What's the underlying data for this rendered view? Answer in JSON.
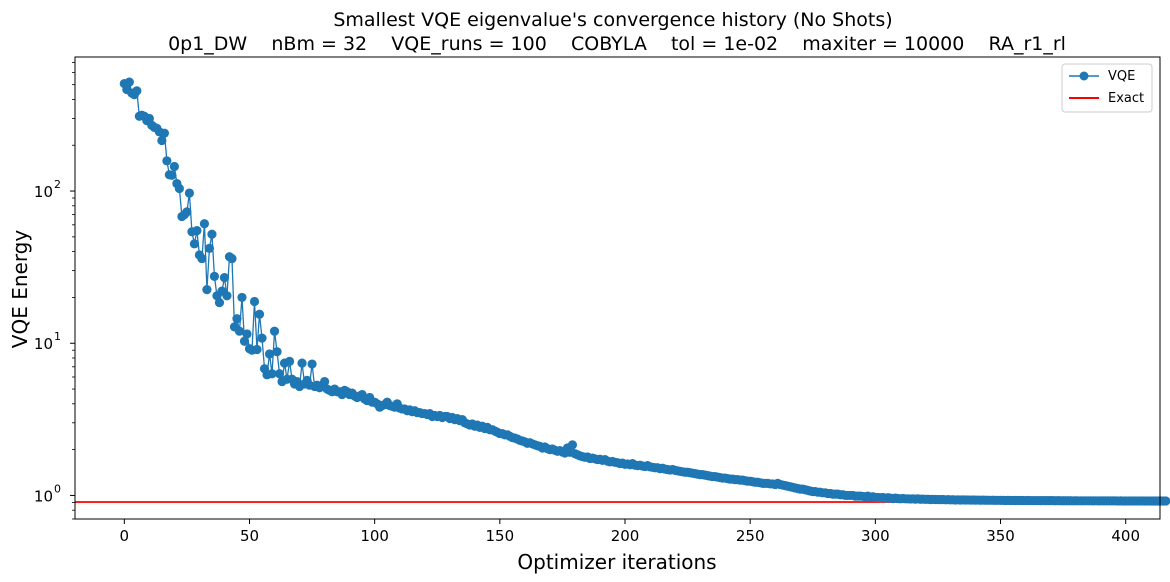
{
  "chart_data": {
    "type": "line",
    "title": "Smallest VQE eigenvalue's convergence history (No Shots)",
    "subtitle": "0p1_DW    nBm = 32    VQE_runs = 100    COBYLA    tol = 1e-02    maxiter = 10000    RA_r1_rl",
    "xlabel": "Optimizer iterations",
    "ylabel": "VQE Energy",
    "xlim": [
      -19.7,
      413.7
    ],
    "ylim": [
      0.7,
      760
    ],
    "yscale": "log",
    "grid": false,
    "x_ticks": [
      0,
      50,
      100,
      150,
      200,
      250,
      300,
      350,
      400
    ],
    "y_ticks": [
      {
        "value": 1,
        "base": "10",
        "exp": "0"
      },
      {
        "value": 10,
        "base": "10",
        "exp": "1"
      },
      {
        "value": 100,
        "base": "10",
        "exp": "2"
      }
    ],
    "legend": {
      "position": "upper right",
      "entries": [
        {
          "label": "VQE",
          "color": "#1f77b4",
          "marker": "circle"
        },
        {
          "label": "Exact",
          "color": "#ff0000",
          "marker": "none"
        }
      ]
    },
    "series": [
      {
        "name": "VQE",
        "color": "#1f77b4",
        "marker": "o",
        "x_start": 0,
        "values": [
          508,
          465,
          520,
          440,
          430,
          455,
          310,
          315,
          310,
          290,
          300,
          270,
          262,
          258,
          245,
          215,
          240,
          158,
          128,
          127,
          145,
          112,
          104,
          68,
          70,
          73,
          97,
          54,
          45,
          55,
          38,
          36,
          61,
          22.5,
          42,
          52,
          27.5,
          20.5,
          18.5,
          22,
          27,
          20.5,
          37,
          36,
          12.8,
          14.5,
          12,
          20,
          10.3,
          11.5,
          9.2,
          9,
          18.8,
          9.1,
          15.5,
          10.8,
          6.8,
          6.2,
          8.5,
          6.3,
          12,
          8.8,
          6.3,
          5.6,
          7.4,
          5.8,
          7.6,
          5.8,
          5.4,
          5.6,
          5.2,
          7.4,
          5.4,
          5.7,
          5.3,
          7.3,
          5.2,
          5.3,
          5.1,
          5.3,
          5.6,
          5,
          4.9,
          4.8,
          5,
          4.8,
          4.8,
          4.6,
          4.9,
          4.8,
          4.6,
          4.7,
          4.5,
          4.4,
          4.5,
          4.6,
          4.3,
          4.2,
          4.4,
          4.1,
          4.1,
          4,
          3.8,
          3.9,
          3.95,
          4.1,
          3.9,
          3.85,
          3.8,
          4,
          3.75,
          3.7,
          3.7,
          3.6,
          3.65,
          3.55,
          3.6,
          3.5,
          3.5,
          3.45,
          3.45,
          3.4,
          3.45,
          3.3,
          3.35,
          3.3,
          3.35,
          3.25,
          3.3,
          3.3,
          3.2,
          3.25,
          3.15,
          3.2,
          3.1,
          3.15,
          3,
          2.95,
          2.9,
          2.95,
          2.85,
          2.9,
          2.8,
          2.85,
          2.75,
          2.8,
          2.7,
          2.7,
          2.65,
          2.6,
          2.55,
          2.55,
          2.5,
          2.5,
          2.45,
          2.4,
          2.38,
          2.35,
          2.3,
          2.28,
          2.25,
          2.2,
          2.22,
          2.18,
          2.15,
          2.12,
          2.1,
          2.05,
          2.08,
          2.03,
          2,
          2.02,
          1.98,
          1.95,
          1.97,
          1.93,
          1.9,
          2.05,
          1.92,
          2.15,
          1.88,
          1.85,
          1.82,
          1.8,
          1.78,
          1.79,
          1.75,
          1.76,
          1.74,
          1.72,
          1.73,
          1.7,
          1.72,
          1.68,
          1.66,
          1.67,
          1.65,
          1.64,
          1.62,
          1.63,
          1.6,
          1.61,
          1.59,
          1.62,
          1.58,
          1.57,
          1.58,
          1.56,
          1.55,
          1.57,
          1.54,
          1.53,
          1.52,
          1.52,
          1.5,
          1.51,
          1.49,
          1.48,
          1.47,
          1.48,
          1.46,
          1.45,
          1.44,
          1.43,
          1.42,
          1.42,
          1.41,
          1.4,
          1.39,
          1.38,
          1.37,
          1.37,
          1.36,
          1.35,
          1.34,
          1.33,
          1.33,
          1.32,
          1.31,
          1.3,
          1.3,
          1.29,
          1.28,
          1.28,
          1.27,
          1.27,
          1.26,
          1.26,
          1.25,
          1.24,
          1.24,
          1.23,
          1.22,
          1.22,
          1.21,
          1.2,
          1.2,
          1.2,
          1.19,
          1.19,
          1.18,
          1.2,
          1.18,
          1.17,
          1.16,
          1.15,
          1.14,
          1.13,
          1.12,
          1.11,
          1.1,
          1.1,
          1.09,
          1.08,
          1.07,
          1.06,
          1.06,
          1.05,
          1.05,
          1.04,
          1.04,
          1.03,
          1.03,
          1.02,
          1.02,
          1.02,
          1.01,
          1.01,
          1,
          1,
          1,
          1,
          0.99,
          0.99,
          0.99,
          0.985,
          0.98,
          0.99,
          0.975,
          0.98,
          0.97,
          0.97,
          0.965,
          0.97,
          0.96,
          0.965,
          0.96,
          0.955,
          0.96,
          0.955,
          0.95,
          0.955,
          0.95,
          0.95,
          0.948,
          0.95,
          0.946,
          0.95,
          0.944,
          0.945,
          0.942,
          0.944,
          0.94,
          0.942,
          0.94,
          0.94,
          0.938,
          0.94,
          0.936,
          0.938,
          0.935,
          0.937,
          0.934,
          0.936,
          0.933,
          0.935,
          0.933,
          0.934,
          0.932,
          0.933,
          0.931,
          0.932,
          0.93,
          0.931,
          0.93,
          0.93,
          0.929,
          0.93,
          0.928,
          0.929,
          0.928,
          0.928,
          0.927,
          0.928,
          0.927,
          0.927,
          0.926,
          0.927,
          0.926,
          0.926,
          0.925,
          0.926,
          0.925,
          0.925,
          0.925,
          0.925,
          0.924,
          0.925,
          0.924,
          0.924,
          0.924,
          0.924,
          0.923,
          0.924,
          0.923,
          0.923,
          0.923,
          0.923,
          0.923,
          0.922,
          0.923,
          0.922,
          0.922,
          0.922,
          0.922,
          0.922,
          0.922,
          0.921,
          0.922,
          0.921,
          0.921,
          0.921,
          0.921,
          0.921,
          0.921,
          0.921,
          0.921,
          0.92,
          0.921,
          0.92,
          0.92,
          0.92,
          0.92,
          0.92,
          0.92,
          0.92,
          0.92,
          0.92,
          0.919,
          0.92,
          0.919,
          0.919,
          0.919,
          0.919,
          0.919,
          0.919,
          0.919
        ]
      },
      {
        "name": "Exact",
        "color": "#ff0000",
        "type": "hline",
        "y": 0.905
      }
    ]
  }
}
